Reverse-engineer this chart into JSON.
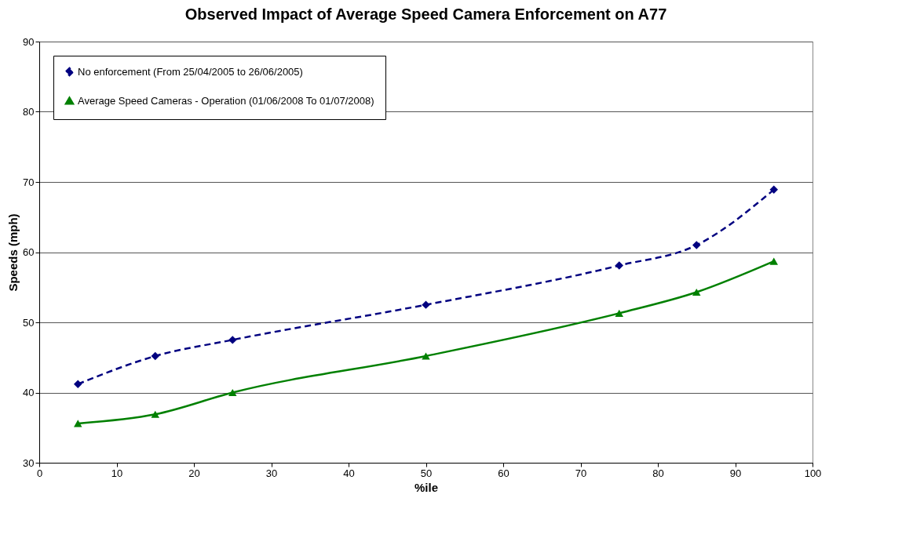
{
  "chart_data": {
    "type": "line",
    "title": "Observed Impact of Average Speed Camera Enforcement on A77",
    "xlabel": "%ile",
    "ylabel": "Speeds (mph)",
    "x": [
      5,
      15,
      25,
      50,
      75,
      85,
      95
    ],
    "series": [
      {
        "name": "No enforcement (From 25/04/2005 to 26/06/2005)",
        "color": "#000080",
        "marker": "diamond",
        "line_style": "dashed",
        "values": [
          41.2,
          45.2,
          47.5,
          52.5,
          58.1,
          61.0,
          68.9
        ]
      },
      {
        "name": "Average Speed Cameras - Operation (01/06/2008 To 01/07/2008)",
        "color": "#008000",
        "marker": "triangle",
        "line_style": "solid",
        "values": [
          35.6,
          36.9,
          40.0,
          45.2,
          51.3,
          54.3,
          58.7
        ]
      }
    ],
    "xlim": [
      0,
      100
    ],
    "xticks": [
      0,
      10,
      20,
      30,
      40,
      50,
      60,
      70,
      80,
      90,
      100
    ],
    "ylim": [
      30,
      90
    ],
    "yticks": [
      30,
      40,
      50,
      60,
      70,
      80,
      90
    ],
    "grid": "y",
    "legend": "top left"
  }
}
